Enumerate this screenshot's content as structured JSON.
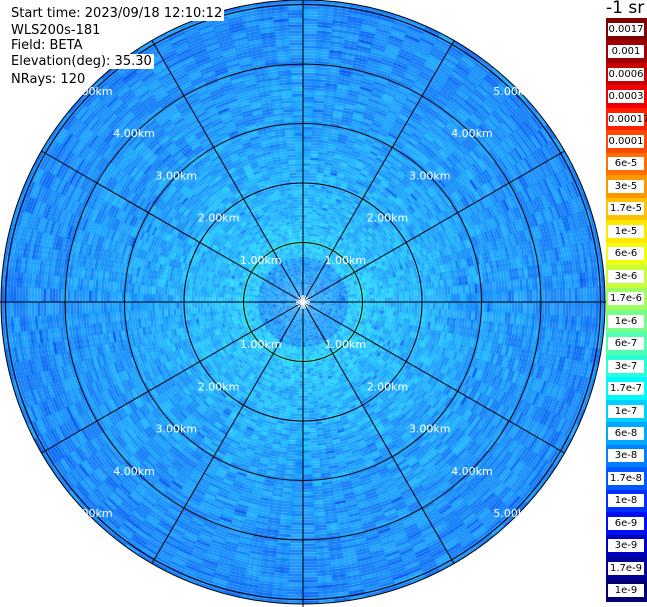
{
  "info": {
    "start_time": "Start time: 2023/09/18 12:10:12",
    "instrument": "WLS200s-181",
    "field": "Field: BETA",
    "elevation": "Elevation(deg): 35.30",
    "nrays": "NRays: 120"
  },
  "unit": "-1 sr",
  "range_rings": [
    "1.00km",
    "2.00km",
    "3.00km",
    "4.00km",
    "5.00km"
  ],
  "colorbar": {
    "labels": [
      "0.0017",
      "0.001",
      "0.0006",
      "0.0003",
      "0.00017",
      "0.0001",
      "6e-5",
      "3e-5",
      "1.7e-5",
      "1e-5",
      "6e-6",
      "3e-6",
      "1.7e-6",
      "1e-6",
      "6e-7",
      "3e-7",
      "1.7e-7",
      "1e-7",
      "6e-8",
      "3e-8",
      "1.7e-8",
      "1e-8",
      "6e-9",
      "3e-9",
      "1.7e-9",
      "1e-9"
    ],
    "colors": [
      "#800000",
      "#a00000",
      "#c80000",
      "#f00000",
      "#ff2000",
      "#ff4800",
      "#ff7000",
      "#ff9800",
      "#ffc000",
      "#ffe800",
      "#f0ff10",
      "#c8ff38",
      "#a0ff60",
      "#78ff88",
      "#50ffb0",
      "#28ffd8",
      "#00f8ff",
      "#00d0ff",
      "#00a8ff",
      "#0080ff",
      "#0058ff",
      "#0030ff",
      "#0010f0",
      "#0000c0",
      "#000098",
      "#000070"
    ]
  }
}
